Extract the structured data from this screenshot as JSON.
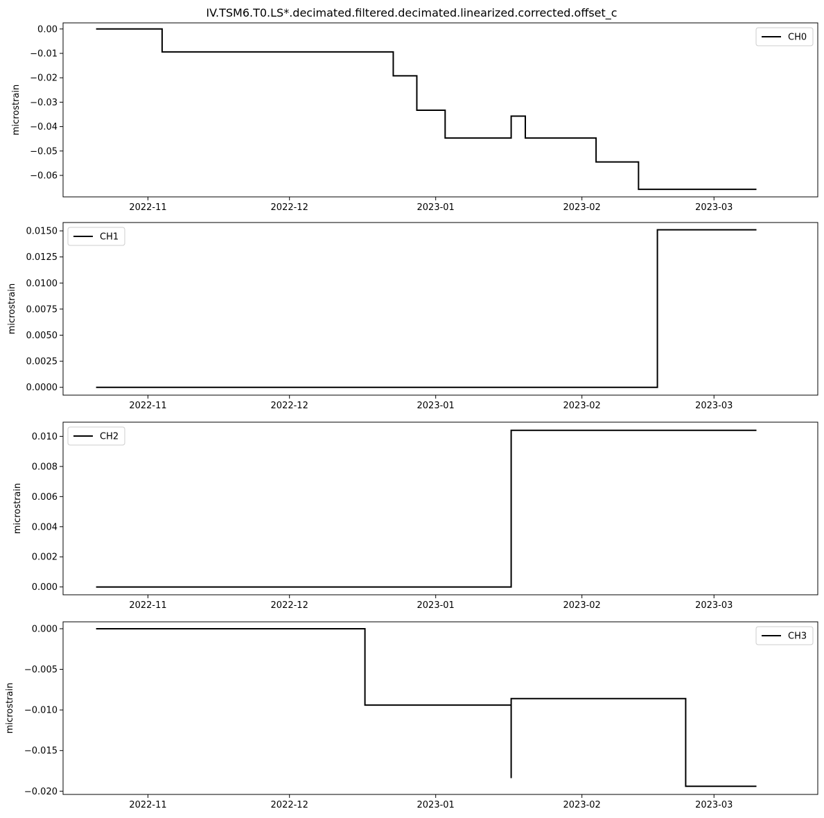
{
  "figure": {
    "title": "IV.TSM6.T0.LS*.decimated.filtered.decimated.linearized.corrected.offset_c"
  },
  "colors": {
    "line": "#000000",
    "axes": "#000000",
    "legend_border": "#cccccc",
    "background": "#ffffff"
  },
  "chart_data": [
    {
      "type": "line",
      "title": "",
      "xlabel": "",
      "ylabel": "microstrain",
      "legend_position": "top-right",
      "grid": false,
      "xlim": [
        "2022-10-14",
        "2023-03-23"
      ],
      "ylim": [
        -0.0688,
        0.0025
      ],
      "xticks": [
        "2022-11-01",
        "2022-12-01",
        "2023-01-01",
        "2023-02-01",
        "2023-03-01"
      ],
      "xtick_labels": [
        "2022-11",
        "2022-12",
        "2023-01",
        "2023-02",
        "2023-03"
      ],
      "yticks": [
        0.0,
        -0.01,
        -0.02,
        -0.03,
        -0.04,
        -0.05,
        -0.06
      ],
      "ytick_labels": [
        "0.00",
        "−0.01",
        "−0.02",
        "−0.03",
        "−0.04",
        "−0.05",
        "−0.06"
      ],
      "series": [
        {
          "name": "CH0",
          "step": true,
          "x": [
            "2022-10-21",
            "2022-11-04",
            "2022-12-23",
            "2022-12-28",
            "2023-01-03",
            "2023-01-17",
            "2023-01-20",
            "2023-02-04",
            "2023-02-13",
            "2023-03-10"
          ],
          "y": [
            0.0,
            -0.0094,
            -0.0192,
            -0.0333,
            -0.0447,
            -0.0357,
            -0.0447,
            -0.0545,
            -0.0657,
            -0.0657
          ]
        }
      ]
    },
    {
      "type": "line",
      "title": "",
      "xlabel": "",
      "ylabel": "microstrain",
      "legend_position": "top-left",
      "grid": false,
      "xlim": [
        "2022-10-14",
        "2023-03-23"
      ],
      "ylim": [
        -0.00075,
        0.0158
      ],
      "xticks": [
        "2022-11-01",
        "2022-12-01",
        "2023-01-01",
        "2023-02-01",
        "2023-03-01"
      ],
      "xtick_labels": [
        "2022-11",
        "2022-12",
        "2023-01",
        "2023-02",
        "2023-03"
      ],
      "yticks": [
        0.015,
        0.0125,
        0.01,
        0.0075,
        0.005,
        0.0025,
        0.0
      ],
      "ytick_labels": [
        "0.0150",
        "0.0125",
        "0.0100",
        "0.0075",
        "0.0050",
        "0.0025",
        "0.0000"
      ],
      "series": [
        {
          "name": "CH1",
          "step": true,
          "x": [
            "2022-10-21",
            "2023-02-17",
            "2023-03-10"
          ],
          "y": [
            0.0,
            0.0151,
            0.0151
          ]
        }
      ]
    },
    {
      "type": "line",
      "title": "",
      "xlabel": "",
      "ylabel": "microstrain",
      "legend_position": "top-left",
      "grid": false,
      "xlim": [
        "2022-10-14",
        "2023-03-23"
      ],
      "ylim": [
        -0.00052,
        0.01094
      ],
      "xticks": [
        "2022-11-01",
        "2022-12-01",
        "2023-01-01",
        "2023-02-01",
        "2023-03-01"
      ],
      "xtick_labels": [
        "2022-11",
        "2022-12",
        "2023-01",
        "2023-02",
        "2023-03"
      ],
      "yticks": [
        0.01,
        0.008,
        0.006,
        0.004,
        0.002,
        0.0
      ],
      "ytick_labels": [
        "0.010",
        "0.008",
        "0.006",
        "0.004",
        "0.002",
        "0.000"
      ],
      "series": [
        {
          "name": "CH2",
          "step": true,
          "x": [
            "2022-10-21",
            "2023-01-17",
            "2023-03-10"
          ],
          "y": [
            0.0,
            0.0104,
            0.0104
          ]
        }
      ]
    },
    {
      "type": "line",
      "title": "",
      "xlabel": "",
      "ylabel": "microstrain",
      "legend_position": "top-right",
      "grid": false,
      "xlim": [
        "2022-10-14",
        "2023-03-23"
      ],
      "ylim": [
        -0.0204,
        0.00085
      ],
      "xticks": [
        "2022-11-01",
        "2022-12-01",
        "2023-01-01",
        "2023-02-01",
        "2023-03-01"
      ],
      "xtick_labels": [
        "2022-11",
        "2022-12",
        "2023-01",
        "2023-02",
        "2023-03"
      ],
      "yticks": [
        0.0,
        -0.005,
        -0.01,
        -0.015,
        -0.02
      ],
      "ytick_labels": [
        "0.000",
        "−0.005",
        "−0.010",
        "−0.015",
        "−0.020"
      ],
      "series": [
        {
          "name": "CH3",
          "step": true,
          "x": [
            "2022-10-21",
            "2022-12-17",
            "2023-01-17",
            "2023-01-17",
            "2023-01-17",
            "2023-02-23",
            "2023-03-10"
          ],
          "y": [
            0.0,
            -0.0094,
            -0.0184,
            -0.0095,
            -0.0086,
            -0.0194,
            -0.0194
          ]
        }
      ]
    }
  ]
}
